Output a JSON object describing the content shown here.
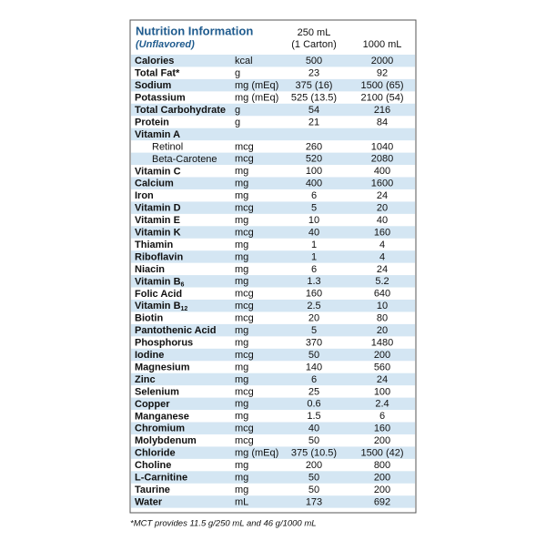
{
  "header": {
    "title": "Nutrition Information",
    "subtitle": "(Unflavored)",
    "col1_line1": "250 mL",
    "col1_line2": "(1 Carton)",
    "col2": "1000 mL"
  },
  "table": {
    "rows": [
      {
        "name": "Calories",
        "unit": "kcal",
        "c1": "500",
        "c2": "2000"
      },
      {
        "name": "Total Fat*",
        "unit": "g",
        "c1": "23",
        "c2": "92"
      },
      {
        "name": "Sodium",
        "unit": "mg (mEq)",
        "c1": "375 (16)",
        "c2": "1500 (65)"
      },
      {
        "name": "Potassium",
        "unit": "mg (mEq)",
        "c1": "525 (13.5)",
        "c2": "2100 (54)"
      },
      {
        "name": "Total Carbohydrate",
        "unit": "g",
        "c1": "54",
        "c2": "216"
      },
      {
        "name": "Protein",
        "unit": "g",
        "c1": "21",
        "c2": "84"
      },
      {
        "name": "Vitamin A",
        "children": [
          {
            "name": "Retinol",
            "unit": "mcg",
            "c1": "260",
            "c2": "1040"
          },
          {
            "name": "Beta-Carotene",
            "unit": "mcg",
            "c1": "520",
            "c2": "2080"
          }
        ]
      },
      {
        "name": "Vitamin C",
        "unit": "mg",
        "c1": "100",
        "c2": "400"
      },
      {
        "name": "Calcium",
        "unit": "mg",
        "c1": "400",
        "c2": "1600"
      },
      {
        "name": "Iron",
        "unit": "mg",
        "c1": "6",
        "c2": "24"
      },
      {
        "name": "Vitamin D",
        "unit": "mcg",
        "c1": "5",
        "c2": "20"
      },
      {
        "name": "Vitamin E",
        "unit": "mg",
        "c1": "10",
        "c2": "40"
      },
      {
        "name": "Vitamin K",
        "unit": "mcg",
        "c1": "40",
        "c2": "160"
      },
      {
        "name": "Thiamin",
        "unit": "mg",
        "c1": "1",
        "c2": "4"
      },
      {
        "name": "Riboflavin",
        "unit": "mg",
        "c1": "1",
        "c2": "4"
      },
      {
        "name": "Niacin",
        "unit": "mg",
        "c1": "6",
        "c2": "24"
      },
      {
        "name": "Vitamin B",
        "sub": "6",
        "unit": "mg",
        "c1": "1.3",
        "c2": "5.2"
      },
      {
        "name": "Folic Acid",
        "unit": "mcg",
        "c1": "160",
        "c2": "640"
      },
      {
        "name": "Vitamin B",
        "sub": "12",
        "unit": "mcg",
        "c1": "2.5",
        "c2": "10"
      },
      {
        "name": "Biotin",
        "unit": "mcg",
        "c1": "20",
        "c2": "80"
      },
      {
        "name": "Pantothenic Acid",
        "unit": "mg",
        "c1": "5",
        "c2": "20"
      },
      {
        "name": "Phosphorus",
        "unit": "mg",
        "c1": "370",
        "c2": "1480"
      },
      {
        "name": "Iodine",
        "unit": "mcg",
        "c1": "50",
        "c2": "200"
      },
      {
        "name": "Magnesium",
        "unit": "mg",
        "c1": "140",
        "c2": "560"
      },
      {
        "name": "Zinc",
        "unit": "mg",
        "c1": "6",
        "c2": "24"
      },
      {
        "name": "Selenium",
        "unit": "mcg",
        "c1": "25",
        "c2": "100"
      },
      {
        "name": "Copper",
        "unit": "mg",
        "c1": "0.6",
        "c2": "2.4"
      },
      {
        "name": "Manganese",
        "unit": "mg",
        "c1": "1.5",
        "c2": "6"
      },
      {
        "name": "Chromium",
        "unit": "mcg",
        "c1": "40",
        "c2": "160"
      },
      {
        "name": "Molybdenum",
        "unit": "mcg",
        "c1": "50",
        "c2": "200"
      },
      {
        "name": "Chloride",
        "unit": "mg (mEq)",
        "c1": "375 (10.5)",
        "c2": "1500 (42)"
      },
      {
        "name": "Choline",
        "unit": "mg",
        "c1": "200",
        "c2": "800"
      },
      {
        "name": "L-Carnitine",
        "unit": "mg",
        "c1": "50",
        "c2": "200"
      },
      {
        "name": "Taurine",
        "unit": "mg",
        "c1": "50",
        "c2": "200"
      },
      {
        "name": "Water",
        "unit": "mL",
        "c1": "173",
        "c2": "692"
      }
    ]
  },
  "footnote": "*MCT provides 11.5 g/250 mL and 46 g/1000 mL"
}
